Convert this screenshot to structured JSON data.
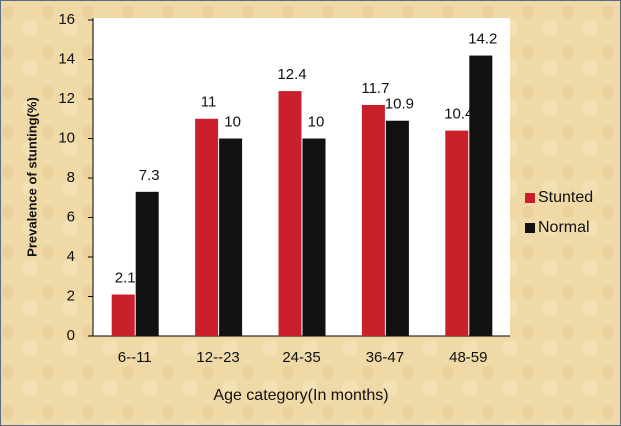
{
  "chart_data": {
    "type": "bar",
    "x_label": "Age category(In months)",
    "y_label": "Prevalence of stunting(%)",
    "categories": [
      "6--11",
      "12--23",
      "24-35",
      "36-47",
      "48-59"
    ],
    "series": [
      {
        "name": "Stunted",
        "color": "#c9202b",
        "values": [
          2.1,
          11,
          12.4,
          11.7,
          10.4
        ]
      },
      {
        "name": "Normal",
        "color": "#111111",
        "values": [
          7.3,
          10,
          10,
          10.9,
          14.2
        ]
      }
    ],
    "ylim": [
      0,
      16
    ],
    "yticks": [
      0,
      2,
      4,
      6,
      8,
      10,
      12,
      14,
      16
    ],
    "grid": false,
    "legend": "right"
  }
}
